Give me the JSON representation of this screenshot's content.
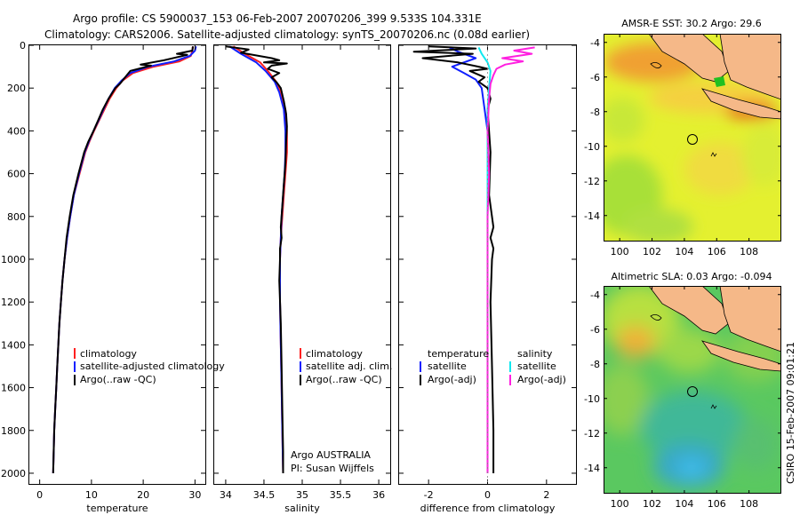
{
  "title": {
    "line1": "Argo profile: CS 5900037_153 06-Feb-2007 20070206_399 9.533S 104.331E",
    "line2": "Climatology: CARS2006. Satellite-adjusted climatology: synTS_20070206.nc (0.08d earlier)"
  },
  "side_label": "CSIRO 15-Feb-2007 09:01:21",
  "colors": {
    "climatology": "#ff2020",
    "satellite": "#1020ff",
    "argo": "#000000",
    "sat_sal": "#10e8f0",
    "argo_sal": "#ff20e0",
    "land": "#f5b888"
  },
  "chart_data": [
    {
      "type": "line",
      "panel": "temperature",
      "xlabel": "temperature",
      "ylabel": "",
      "xlim": [
        -2,
        32
      ],
      "ylim": [
        2050,
        0
      ],
      "x_ticks": [
        "0",
        "10",
        "20",
        "30"
      ],
      "y_ticks": [
        "0",
        "200",
        "400",
        "600",
        "800",
        "1000",
        "1200",
        "1400",
        "1600",
        "1800",
        "2000"
      ],
      "legend": [
        "climatology",
        "satellite-adjusted climatology",
        "Argo(..raw -QC)"
      ],
      "series": [
        {
          "name": "climatology",
          "points": [
            [
              29.6,
              5
            ],
            [
              29.5,
              25
            ],
            [
              29.2,
              50
            ],
            [
              27,
              75
            ],
            [
              22,
              100
            ],
            [
              18,
              130
            ],
            [
              16,
              165
            ],
            [
              14.8,
              200
            ],
            [
              13.5,
              250
            ],
            [
              12.5,
              300
            ],
            [
              11.5,
              350
            ],
            [
              10.5,
              400
            ],
            [
              9.6,
              450
            ],
            [
              8.8,
              500
            ],
            [
              7.7,
              600
            ],
            [
              6.6,
              700
            ],
            [
              5.9,
              800
            ],
            [
              5.3,
              900
            ],
            [
              4.8,
              1000
            ],
            [
              4.4,
              1100
            ],
            [
              4.1,
              1200
            ],
            [
              3.8,
              1300
            ],
            [
              3.6,
              1400
            ],
            [
              3.4,
              1500
            ],
            [
              3.2,
              1600
            ],
            [
              3.0,
              1700
            ],
            [
              2.8,
              1800
            ],
            [
              2.7,
              1900
            ],
            [
              2.6,
              2000
            ]
          ]
        },
        {
          "name": "satellite-adjusted climatology",
          "points": [
            [
              30.2,
              5
            ],
            [
              30,
              25
            ],
            [
              29,
              50
            ],
            [
              26,
              75
            ],
            [
              21,
              100
            ],
            [
              17.5,
              130
            ],
            [
              15.8,
              165
            ],
            [
              14.5,
              200
            ],
            [
              13.3,
              250
            ],
            [
              12.3,
              300
            ],
            [
              11.4,
              350
            ],
            [
              10.4,
              400
            ],
            [
              9.5,
              450
            ],
            [
              8.7,
              500
            ],
            [
              7.6,
              600
            ],
            [
              6.6,
              700
            ],
            [
              5.9,
              800
            ],
            [
              5.3,
              900
            ],
            [
              4.8,
              1000
            ],
            [
              4.4,
              1100
            ],
            [
              4.1,
              1200
            ],
            [
              3.8,
              1300
            ],
            [
              3.6,
              1400
            ],
            [
              3.4,
              1500
            ],
            [
              3.2,
              1600
            ],
            [
              3.0,
              1700
            ],
            [
              2.8,
              1800
            ],
            [
              2.7,
              1900
            ],
            [
              2.6,
              2000
            ]
          ]
        },
        {
          "name": "Argo(..raw -QC)",
          "points": [
            [
              29.6,
              5
            ],
            [
              29.5,
              25
            ],
            [
              26.5,
              40
            ],
            [
              28.5,
              45
            ],
            [
              24,
              70
            ],
            [
              19.5,
              90
            ],
            [
              21.5,
              95
            ],
            [
              17.5,
              120
            ],
            [
              16.5,
              150
            ],
            [
              15.5,
              180
            ],
            [
              14.6,
              200
            ],
            [
              13.3,
              250
            ],
            [
              12.2,
              300
            ],
            [
              11.3,
              350
            ],
            [
              10.4,
              400
            ],
            [
              9.4,
              450
            ],
            [
              8.6,
              500
            ],
            [
              7.5,
              600
            ],
            [
              6.5,
              700
            ],
            [
              5.8,
              800
            ],
            [
              5.2,
              900
            ],
            [
              4.8,
              1000
            ],
            [
              4.4,
              1100
            ],
            [
              4.1,
              1200
            ],
            [
              3.8,
              1300
            ],
            [
              3.6,
              1400
            ],
            [
              3.4,
              1500
            ],
            [
              3.2,
              1600
            ],
            [
              3.0,
              1700
            ],
            [
              2.8,
              1800
            ],
            [
              2.7,
              1900
            ],
            [
              2.6,
              2000
            ]
          ]
        }
      ]
    },
    {
      "type": "line",
      "panel": "salinity",
      "xlabel": "salinity",
      "xlim": [
        33.85,
        36.15
      ],
      "ylim": [
        2050,
        0
      ],
      "x_ticks": [
        "34",
        "34.5",
        "35",
        "35.5",
        "36"
      ],
      "legend": [
        "climatology",
        "satellite adj. clim.",
        "Argo(..raw -QC)"
      ],
      "annotation": [
        "Argo AUSTRALIA",
        "PI: Susan Wijffels"
      ],
      "series": [
        {
          "name": "climatology",
          "points": [
            [
              34.1,
              5
            ],
            [
              34.25,
              40
            ],
            [
              34.45,
              80
            ],
            [
              34.55,
              120
            ],
            [
              34.66,
              170
            ],
            [
              34.72,
              220
            ],
            [
              34.78,
              300
            ],
            [
              34.8,
              400
            ],
            [
              34.8,
              500
            ],
            [
              34.78,
              600
            ],
            [
              34.76,
              700
            ],
            [
              34.74,
              800
            ],
            [
              34.72,
              900
            ],
            [
              34.71,
              1000
            ],
            [
              34.71,
              1200
            ],
            [
              34.72,
              1400
            ],
            [
              34.73,
              1600
            ],
            [
              34.74,
              1800
            ],
            [
              34.75,
              2000
            ]
          ]
        },
        {
          "name": "satellite adj. clim.",
          "points": [
            [
              34.05,
              5
            ],
            [
              34.2,
              40
            ],
            [
              34.4,
              80
            ],
            [
              34.52,
              120
            ],
            [
              34.64,
              170
            ],
            [
              34.7,
              220
            ],
            [
              34.76,
              300
            ],
            [
              34.78,
              400
            ],
            [
              34.78,
              500
            ],
            [
              34.77,
              600
            ],
            [
              34.75,
              700
            ],
            [
              34.73,
              800
            ],
            [
              34.72,
              900
            ],
            [
              34.71,
              1000
            ],
            [
              34.71,
              1200
            ],
            [
              34.72,
              1400
            ],
            [
              34.73,
              1600
            ],
            [
              34.74,
              1800
            ],
            [
              34.75,
              2000
            ]
          ]
        },
        {
          "name": "Argo(..raw -QC)",
          "points": [
            [
              34.0,
              5
            ],
            [
              34.3,
              20
            ],
            [
              34.2,
              35
            ],
            [
              34.6,
              60
            ],
            [
              34.7,
              70
            ],
            [
              34.5,
              80
            ],
            [
              34.8,
              85
            ],
            [
              34.6,
              95
            ],
            [
              34.55,
              110
            ],
            [
              34.7,
              130
            ],
            [
              34.6,
              150
            ],
            [
              34.67,
              175
            ],
            [
              34.72,
              200
            ],
            [
              34.76,
              260
            ],
            [
              34.79,
              320
            ],
            [
              34.8,
              380
            ],
            [
              34.79,
              450
            ],
            [
              34.78,
              550
            ],
            [
              34.76,
              650
            ],
            [
              34.74,
              750
            ],
            [
              34.72,
              850
            ],
            [
              34.73,
              900
            ],
            [
              34.71,
              950
            ],
            [
              34.71,
              1000
            ],
            [
              34.7,
              1100
            ],
            [
              34.72,
              1300
            ],
            [
              34.73,
              1500
            ],
            [
              34.74,
              1700
            ],
            [
              34.75,
              1900
            ],
            [
              34.75,
              2000
            ]
          ]
        }
      ]
    },
    {
      "type": "line",
      "panel": "difference",
      "xlabel": "difference from climatology",
      "xlim": [
        -3,
        3
      ],
      "ylim": [
        2050,
        0
      ],
      "x_ticks": [
        "-2",
        "0",
        "2"
      ],
      "legend_temperature": [
        "temperature",
        "satellite",
        "Argo(-adj)"
      ],
      "legend_salinity": [
        "salinity",
        "satellite",
        "Argo(-adj)"
      ],
      "series": [
        {
          "name": "temperature satellite",
          "points": [
            [
              -1.3,
              10
            ],
            [
              -1.0,
              30
            ],
            [
              -0.4,
              60
            ],
            [
              -1.2,
              100
            ],
            [
              -0.8,
              130
            ],
            [
              -0.4,
              160
            ],
            [
              -0.2,
              200
            ],
            [
              -0.1,
              300
            ],
            [
              0,
              400
            ],
            [
              0,
              600
            ],
            [
              0,
              800
            ],
            [
              0,
              1000
            ],
            [
              0,
              1500
            ],
            [
              0,
              2000
            ]
          ]
        },
        {
          "name": "temperature Argo(-adj)",
          "points": [
            [
              -2.0,
              5
            ],
            [
              -0.4,
              15
            ],
            [
              -2.5,
              30
            ],
            [
              -0.5,
              40
            ],
            [
              -2.2,
              60
            ],
            [
              -1.0,
              80
            ],
            [
              -0.3,
              100
            ],
            [
              0.0,
              110
            ],
            [
              -0.6,
              120
            ],
            [
              -0.1,
              150
            ],
            [
              -0.3,
              170
            ],
            [
              0.0,
              200
            ],
            [
              0.1,
              250
            ],
            [
              0.0,
              300
            ],
            [
              0.1,
              500
            ],
            [
              0.05,
              700
            ],
            [
              0.2,
              850
            ],
            [
              0.1,
              900
            ],
            [
              0.2,
              950
            ],
            [
              0.15,
              1000
            ],
            [
              0.1,
              1200
            ],
            [
              0.15,
              1500
            ],
            [
              0.2,
              1800
            ],
            [
              0.2,
              2000
            ]
          ]
        },
        {
          "name": "salinity satellite",
          "points": [
            [
              -0.3,
              10
            ],
            [
              -0.2,
              40
            ],
            [
              0.0,
              80
            ],
            [
              0.1,
              120
            ],
            [
              0.05,
              200
            ],
            [
              0.0,
              300
            ],
            [
              0.0,
              500
            ],
            [
              0.0,
              800
            ],
            [
              0.0,
              1000
            ],
            [
              0.0,
              1500
            ],
            [
              0.0,
              2000
            ]
          ]
        },
        {
          "name": "salinity Argo(-adj)",
          "points": [
            [
              1.6,
              10
            ],
            [
              0.9,
              25
            ],
            [
              1.5,
              40
            ],
            [
              0.5,
              60
            ],
            [
              1.2,
              75
            ],
            [
              0.6,
              90
            ],
            [
              0.3,
              110
            ],
            [
              0.2,
              140
            ],
            [
              0.1,
              180
            ],
            [
              0.05,
              250
            ],
            [
              0.0,
              400
            ],
            [
              0.05,
              600
            ],
            [
              0.0,
              800
            ],
            [
              0.0,
              1000
            ],
            [
              0.0,
              1300
            ],
            [
              0.0,
              1600
            ],
            [
              0.0,
              2000
            ]
          ]
        }
      ]
    },
    {
      "type": "heatmap",
      "panel": "sst_map",
      "title": "AMSR-E SST: 30.2 Argo: 29.6",
      "xlim": [
        99,
        110
      ],
      "ylim": [
        -15.5,
        -3.5
      ],
      "x_ticks": [
        "100",
        "102",
        "104",
        "106",
        "108"
      ],
      "y_ticks": [
        "-4",
        "-6",
        "-8",
        "-10",
        "-12",
        "-14"
      ],
      "float_position": [
        104.331,
        -9.533
      ]
    },
    {
      "type": "heatmap",
      "panel": "sla_map",
      "title": "Altimetric SLA: 0.03 Argo: -0.094",
      "xlim": [
        99,
        110
      ],
      "ylim": [
        -15.5,
        -3.5
      ],
      "x_ticks": [
        "100",
        "102",
        "104",
        "106",
        "108"
      ],
      "y_ticks": [
        "-4",
        "-6",
        "-8",
        "-10",
        "-12",
        "-14"
      ],
      "float_position": [
        104.331,
        -9.533
      ]
    }
  ]
}
